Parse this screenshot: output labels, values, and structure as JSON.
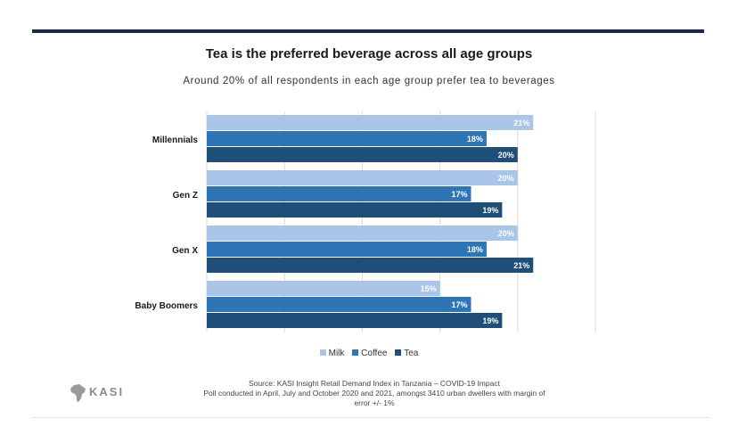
{
  "header": {
    "title": "Tea is the preferred beverage across all age groups",
    "subtitle": "Around 20% of all respondents in each age group prefer tea to beverages"
  },
  "colors": {
    "milk": "#a9c5e8",
    "coffee": "#2e75b6",
    "tea": "#1f4e79",
    "grid": "#d9d9d9"
  },
  "chart_data": {
    "type": "bar",
    "orientation": "horizontal",
    "categories": [
      "Millennials",
      "Gen Z",
      "Gen X",
      "Baby Boomers"
    ],
    "series": [
      {
        "name": "Milk",
        "values": [
          21,
          20,
          20,
          15
        ],
        "labels": [
          "21%",
          "20%",
          "20%",
          "15%"
        ]
      },
      {
        "name": "Coffee",
        "values": [
          18,
          17,
          18,
          17
        ],
        "labels": [
          "18%",
          "17%",
          "18%",
          "17%"
        ]
      },
      {
        "name": "Tea",
        "values": [
          20,
          19,
          21,
          19
        ],
        "labels": [
          "20%",
          "19%",
          "21%",
          "19%"
        ]
      }
    ],
    "xlim": [
      0,
      25
    ],
    "grid": true,
    "legend": "bottom-center"
  },
  "legend": {
    "milk": "Milk",
    "coffee": "Coffee",
    "tea": "Tea"
  },
  "footer": {
    "source_line1": "Source: KASI Insight Retail Demand Index in Tanzania – COVID-19 Impact",
    "source_line2": "Poll conducted in April, July and October 2020 and 2021, amongst 3410 urban dwellers with  margin of",
    "source_line3": "error +/- 1%",
    "logo_text": "KASI"
  }
}
